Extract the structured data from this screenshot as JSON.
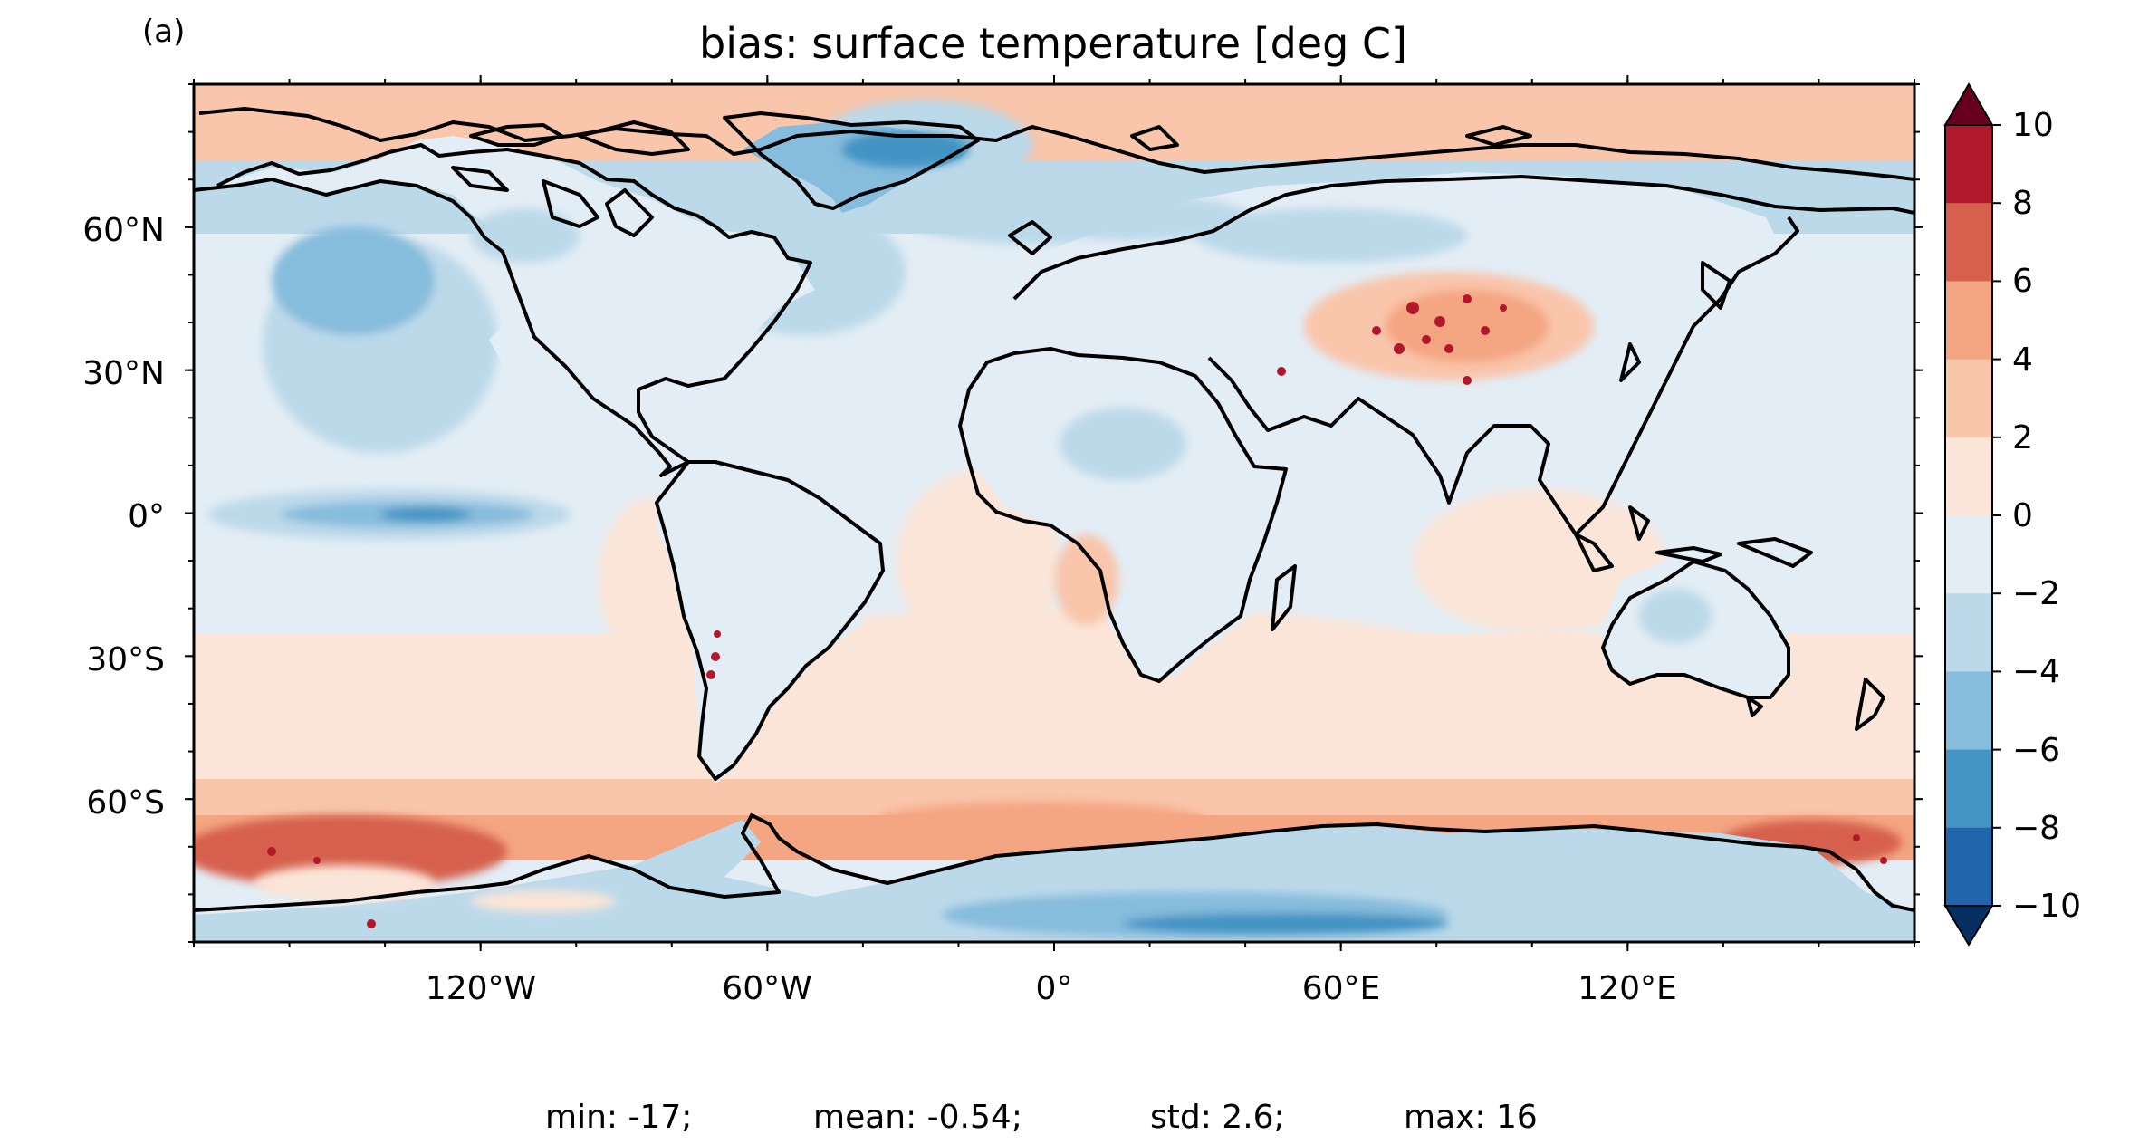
{
  "panel_label": "(a)",
  "title": "bias: surface temperature [deg C]",
  "map": {
    "projection": "equirectangular",
    "lon_ticks": [
      {
        "value": -120,
        "label": "120°W"
      },
      {
        "value": -60,
        "label": "60°W"
      },
      {
        "value": 0,
        "label": "0°"
      },
      {
        "value": 60,
        "label": "60°E"
      },
      {
        "value": 120,
        "label": "120°E"
      }
    ],
    "lat_ticks": [
      {
        "value": 60,
        "label": "60°N"
      },
      {
        "value": 30,
        "label": "30°N"
      },
      {
        "value": 0,
        "label": "0°"
      },
      {
        "value": -30,
        "label": "30°S"
      },
      {
        "value": -60,
        "label": "60°S"
      }
    ]
  },
  "colorbar": {
    "levels": [
      -10,
      -8,
      -6,
      -4,
      -2,
      0,
      2,
      4,
      6,
      8,
      10
    ],
    "labels": [
      "10",
      "8",
      "6",
      "4",
      "2",
      "0",
      "−2",
      "−4",
      "−6",
      "−8",
      "−10"
    ],
    "colors": {
      "over": "#67001f",
      "8_10": "#b2182b",
      "6_8": "#d6604d",
      "4_6": "#f4a582",
      "2_4": "#f9c5ab",
      "0_2": "#fbe5d8",
      "m2_0": "#e3edf5",
      "m4_m2": "#bcd9ea",
      "m6_m4": "#86bcdc",
      "m8_m6": "#4393c3",
      "m10_m8": "#2166ac",
      "under": "#053061"
    },
    "extend": "both"
  },
  "stats": {
    "min": "min: -17;",
    "mean": "mean: -0.54;",
    "std": "std: 2.6;",
    "max": "max: 16"
  }
}
